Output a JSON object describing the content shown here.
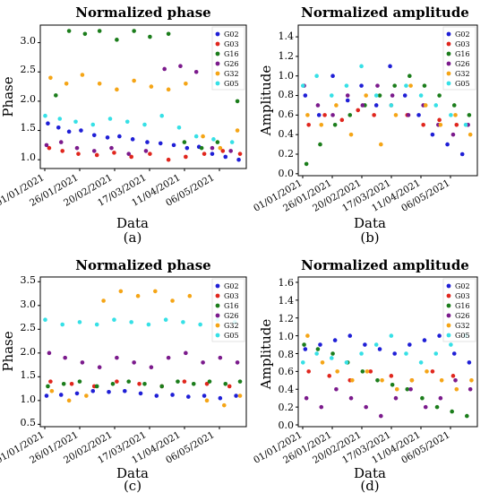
{
  "figure": {
    "colors": {
      "G02": "#1f1fd6",
      "G03": "#e0261d",
      "G16": "#1b7d1b",
      "G26": "#7b1a8c",
      "G32": "#f5a516",
      "G05": "#36e0e6"
    }
  },
  "chart_data": [
    {
      "id": "a",
      "type": "scatter",
      "title": "Normalized phase",
      "xlabel": "Data",
      "ylabel": "Phase",
      "sublabel": "(a)",
      "x_tick_labels": [
        "01/01/2021",
        "26/01/2021",
        "20/02/2021",
        "17/03/2021",
        "11/04/2021",
        "06/05/2021"
      ],
      "x_range": [
        "2021-01-01",
        "2021-05-31"
      ],
      "ylim": [
        0.85,
        3.3
      ],
      "y_ticks": [
        "1.0",
        "1.5",
        "2.0",
        "2.5",
        "3.0"
      ],
      "y_tick_values": [
        1.0,
        1.5,
        2.0,
        2.5,
        3.0
      ],
      "legend": [
        "G02",
        "G03",
        "G16",
        "G26",
        "G32",
        "G05"
      ],
      "legend_position": "top-right",
      "series": [
        {
          "name": "G02",
          "x": [
            "2021-01-04",
            "2021-01-12",
            "2021-01-20",
            "2021-01-29",
            "2021-02-08",
            "2021-02-18",
            "2021-02-27",
            "2021-03-09",
            "2021-03-20",
            "2021-03-30",
            "2021-04-09",
            "2021-04-19",
            "2021-04-28",
            "2021-05-08",
            "2021-05-18",
            "2021-05-28"
          ],
          "y": [
            1.62,
            1.55,
            1.48,
            1.5,
            1.42,
            1.38,
            1.4,
            1.35,
            1.3,
            1.28,
            1.25,
            1.2,
            1.22,
            1.1,
            1.05,
            1.0
          ]
        },
        {
          "name": "G03",
          "x": [
            "2021-01-05",
            "2021-01-15",
            "2021-01-27",
            "2021-02-10",
            "2021-02-23",
            "2021-03-08",
            "2021-03-22",
            "2021-04-05",
            "2021-04-18",
            "2021-05-02",
            "2021-05-16",
            "2021-05-29"
          ],
          "y": [
            1.2,
            1.15,
            1.1,
            1.08,
            1.12,
            1.05,
            1.1,
            1.0,
            1.05,
            1.1,
            1.15,
            1.1
          ]
        },
        {
          "name": "G16",
          "x": [
            "2021-01-10",
            "2021-01-20",
            "2021-02-01",
            "2021-02-12",
            "2021-02-25",
            "2021-03-10",
            "2021-03-22",
            "2021-04-05",
            "2021-04-17",
            "2021-04-30",
            "2021-05-12",
            "2021-05-27"
          ],
          "y": [
            2.1,
            3.2,
            3.15,
            3.2,
            3.05,
            3.2,
            3.1,
            3.15,
            1.3,
            1.2,
            1.3,
            2.0
          ]
        },
        {
          "name": "G26",
          "x": [
            "2021-01-03",
            "2021-01-14",
            "2021-01-26",
            "2021-02-08",
            "2021-02-21",
            "2021-03-06",
            "2021-03-19",
            "2021-04-02",
            "2021-04-14",
            "2021-04-26",
            "2021-05-08",
            "2021-05-22"
          ],
          "y": [
            1.25,
            1.3,
            1.2,
            1.15,
            1.2,
            1.1,
            1.15,
            2.55,
            2.6,
            2.5,
            1.2,
            1.15
          ]
        },
        {
          "name": "G32",
          "x": [
            "2021-01-06",
            "2021-01-18",
            "2021-01-30",
            "2021-02-12",
            "2021-02-25",
            "2021-03-10",
            "2021-03-23",
            "2021-04-05",
            "2021-04-18",
            "2021-05-01",
            "2021-05-14",
            "2021-05-27"
          ],
          "y": [
            2.4,
            2.3,
            2.45,
            2.3,
            2.2,
            2.35,
            2.25,
            2.2,
            2.3,
            1.4,
            1.2,
            1.5
          ]
        },
        {
          "name": "G05",
          "x": [
            "2021-01-02",
            "2021-01-13",
            "2021-01-25",
            "2021-02-07",
            "2021-02-20",
            "2021-03-05",
            "2021-03-18",
            "2021-03-31",
            "2021-04-13",
            "2021-04-26",
            "2021-05-09",
            "2021-05-23"
          ],
          "y": [
            1.75,
            1.7,
            1.65,
            1.6,
            1.7,
            1.65,
            1.6,
            1.75,
            1.55,
            1.4,
            1.35,
            1.3
          ]
        }
      ]
    },
    {
      "id": "b",
      "type": "scatter",
      "title": "Normalized amplitude",
      "xlabel": "Data",
      "ylabel": "Amplitude",
      "sublabel": "(b)",
      "x_tick_labels": [
        "01/01/2021",
        "26/01/2021",
        "20/02/2021",
        "17/03/2021",
        "11/04/2021",
        "06/05/2021"
      ],
      "x_range": [
        "2021-01-01",
        "2021-05-31"
      ],
      "ylim": [
        -0.02,
        1.52
      ],
      "y_ticks": [
        "0.0",
        "0.2",
        "0.4",
        "0.6",
        "0.8",
        "1.0",
        "1.2",
        "1.4"
      ],
      "y_tick_values": [
        0.0,
        0.2,
        0.4,
        0.6,
        0.8,
        1.0,
        1.2,
        1.4
      ],
      "legend": [
        "G02",
        "G03",
        "G16",
        "G26",
        "G32",
        "G05"
      ],
      "legend_position": "top-right",
      "series": [
        {
          "name": "G02",
          "x": [
            "2021-01-04",
            "2021-01-16",
            "2021-01-28",
            "2021-02-10",
            "2021-02-22",
            "2021-03-07",
            "2021-03-19",
            "2021-04-01",
            "2021-04-13",
            "2021-04-25",
            "2021-05-08",
            "2021-05-21"
          ],
          "y": [
            0.8,
            0.6,
            1.0,
            0.75,
            0.9,
            0.7,
            1.1,
            0.8,
            0.6,
            0.4,
            0.3,
            0.2
          ]
        },
        {
          "name": "G03",
          "x": [
            "2021-01-07",
            "2021-01-21",
            "2021-02-05",
            "2021-02-19",
            "2021-03-05",
            "2021-03-20",
            "2021-04-03",
            "2021-04-17",
            "2021-05-01",
            "2021-05-16"
          ],
          "y": [
            0.5,
            0.6,
            0.55,
            0.65,
            0.6,
            0.7,
            0.6,
            0.5,
            0.55,
            0.5
          ]
        },
        {
          "name": "G16",
          "x": [
            "2021-01-05",
            "2021-01-17",
            "2021-01-30",
            "2021-02-12",
            "2021-02-25",
            "2021-03-10",
            "2021-03-23",
            "2021-04-05",
            "2021-04-18",
            "2021-05-01",
            "2021-05-14",
            "2021-05-27"
          ],
          "y": [
            0.1,
            0.3,
            0.5,
            0.6,
            0.7,
            0.8,
            0.9,
            1.0,
            0.9,
            0.8,
            0.7,
            0.6
          ]
        },
        {
          "name": "G26",
          "x": [
            "2021-01-03",
            "2021-01-15",
            "2021-01-28",
            "2021-02-10",
            "2021-02-23",
            "2021-03-08",
            "2021-03-21",
            "2021-04-04",
            "2021-04-17",
            "2021-04-30",
            "2021-05-13",
            "2021-05-26"
          ],
          "y": [
            0.9,
            0.7,
            0.6,
            0.8,
            0.7,
            0.9,
            0.8,
            0.6,
            0.7,
            0.5,
            0.4,
            0.5
          ]
        },
        {
          "name": "G32",
          "x": [
            "2021-01-06",
            "2021-01-18",
            "2021-01-31",
            "2021-02-13",
            "2021-02-26",
            "2021-03-11",
            "2021-03-24",
            "2021-04-06",
            "2021-04-19",
            "2021-05-02",
            "2021-05-15",
            "2021-05-28"
          ],
          "y": [
            0.6,
            0.5,
            0.7,
            0.4,
            0.8,
            0.3,
            0.6,
            0.9,
            0.7,
            0.5,
            0.6,
            0.4
          ]
        },
        {
          "name": "G05",
          "x": [
            "2021-01-02",
            "2021-01-14",
            "2021-01-27",
            "2021-02-09",
            "2021-02-22",
            "2021-03-07",
            "2021-03-20",
            "2021-04-02",
            "2021-04-15",
            "2021-04-28",
            "2021-05-11",
            "2021-05-24"
          ],
          "y": [
            0.9,
            1.0,
            0.8,
            0.9,
            1.1,
            0.8,
            0.7,
            0.9,
            0.8,
            0.7,
            0.6,
            0.5
          ]
        }
      ]
    },
    {
      "id": "c",
      "type": "scatter",
      "title": "Normalized phase",
      "xlabel": "Data",
      "ylabel": "Phase",
      "sublabel": "(c)",
      "x_tick_labels": [
        "01/01/2021",
        "26/01/2021",
        "20/02/2021",
        "17/03/2021",
        "11/04/2021",
        "06/05/2021"
      ],
      "x_range": [
        "2021-01-01",
        "2021-05-31"
      ],
      "ylim": [
        0.45,
        3.6
      ],
      "y_ticks": [
        "0.5",
        "1.0",
        "1.5",
        "2.0",
        "2.5",
        "3.0",
        "3.5"
      ],
      "y_tick_values": [
        0.5,
        1.0,
        1.5,
        2.0,
        2.5,
        3.0,
        3.5
      ],
      "legend": [
        "G02",
        "G03",
        "G16",
        "G26",
        "G32",
        "G05"
      ],
      "legend_position": "top-right",
      "series": [
        {
          "name": "G02",
          "x": [
            "2021-01-03",
            "2021-01-14",
            "2021-01-26",
            "2021-02-07",
            "2021-02-19",
            "2021-03-03",
            "2021-03-15",
            "2021-03-27",
            "2021-04-08",
            "2021-04-20",
            "2021-05-02",
            "2021-05-14",
            "2021-05-26"
          ],
          "y": [
            1.1,
            1.12,
            1.15,
            1.2,
            1.18,
            1.2,
            1.15,
            1.1,
            1.12,
            1.08,
            1.1,
            1.05,
            1.1
          ]
        },
        {
          "name": "G03",
          "x": [
            "2021-01-06",
            "2021-01-22",
            "2021-02-08",
            "2021-02-25",
            "2021-03-14",
            "2021-03-31",
            "2021-04-17",
            "2021-05-04",
            "2021-05-21"
          ],
          "y": [
            1.4,
            1.35,
            1.3,
            1.4,
            1.35,
            1.3,
            1.4,
            1.35,
            1.3
          ]
        },
        {
          "name": "G16",
          "x": [
            "2021-01-04",
            "2021-01-16",
            "2021-01-28",
            "2021-02-10",
            "2021-02-22",
            "2021-03-06",
            "2021-03-18",
            "2021-03-31",
            "2021-04-12",
            "2021-04-24",
            "2021-05-06",
            "2021-05-18",
            "2021-05-29"
          ],
          "y": [
            1.3,
            1.35,
            1.4,
            1.3,
            1.35,
            1.4,
            1.35,
            1.3,
            1.4,
            1.35,
            1.4,
            1.35,
            1.4
          ]
        },
        {
          "name": "G26",
          "x": [
            "2021-01-05",
            "2021-01-17",
            "2021-01-30",
            "2021-02-12",
            "2021-02-25",
            "2021-03-10",
            "2021-03-23",
            "2021-04-05",
            "2021-04-18",
            "2021-05-01",
            "2021-05-14",
            "2021-05-27"
          ],
          "y": [
            2.0,
            1.9,
            1.8,
            1.7,
            1.9,
            1.8,
            1.7,
            1.9,
            2.0,
            1.8,
            1.9,
            1.8
          ]
        },
        {
          "name": "G32",
          "x": [
            "2021-01-07",
            "2021-01-20",
            "2021-02-02",
            "2021-02-15",
            "2021-02-28",
            "2021-03-13",
            "2021-03-26",
            "2021-04-08",
            "2021-04-21",
            "2021-05-04",
            "2021-05-17",
            "2021-05-29"
          ],
          "y": [
            1.2,
            1.0,
            1.1,
            3.1,
            3.3,
            3.2,
            3.3,
            3.1,
            3.2,
            1.0,
            0.9,
            1.1
          ]
        },
        {
          "name": "G05",
          "x": [
            "2021-01-02",
            "2021-01-15",
            "2021-01-28",
            "2021-02-10",
            "2021-02-23",
            "2021-03-08",
            "2021-03-21",
            "2021-04-03",
            "2021-04-16",
            "2021-04-29",
            "2021-05-12",
            "2021-05-25"
          ],
          "y": [
            2.7,
            2.6,
            2.65,
            2.6,
            2.7,
            2.65,
            2.6,
            2.7,
            2.65,
            2.6,
            2.7,
            2.65
          ]
        }
      ]
    },
    {
      "id": "d",
      "type": "scatter",
      "title": "Normalized amplitude",
      "xlabel": "Data",
      "ylabel": "Amplitude",
      "sublabel": "(d)",
      "x_tick_labels": [
        "01/01/2021",
        "26/01/2021",
        "20/02/2021",
        "17/03/2021",
        "11/04/2021",
        "06/05/2021"
      ],
      "x_range": [
        "2021-01-01",
        "2021-05-31"
      ],
      "ylim": [
        -0.02,
        1.66
      ],
      "y_ticks": [
        "0.0",
        "0.2",
        "0.4",
        "0.6",
        "0.8",
        "1.0",
        "1.2",
        "1.4",
        "1.6"
      ],
      "y_tick_values": [
        0.0,
        0.2,
        0.4,
        0.6,
        0.8,
        1.0,
        1.2,
        1.4,
        1.6
      ],
      "legend": [
        "G02",
        "G03",
        "G16",
        "G26",
        "G32",
        "G05"
      ],
      "legend_position": "top-right",
      "series": [
        {
          "name": "G02",
          "x": [
            "2021-01-04",
            "2021-01-17",
            "2021-01-30",
            "2021-02-12",
            "2021-02-25",
            "2021-03-10",
            "2021-03-23",
            "2021-04-05",
            "2021-04-18",
            "2021-05-01",
            "2021-05-14",
            "2021-05-27"
          ],
          "y": [
            0.85,
            0.9,
            0.95,
            1.0,
            0.9,
            0.85,
            0.8,
            0.9,
            0.95,
            1.0,
            0.8,
            0.7
          ]
        },
        {
          "name": "G03",
          "x": [
            "2021-01-07",
            "2021-01-25",
            "2021-02-12",
            "2021-03-02",
            "2021-03-20",
            "2021-04-07",
            "2021-04-25",
            "2021-05-13"
          ],
          "y": [
            0.6,
            0.55,
            0.5,
            0.6,
            0.55,
            0.5,
            0.6,
            0.55
          ]
        },
        {
          "name": "G16",
          "x": [
            "2021-01-03",
            "2021-01-15",
            "2021-01-28",
            "2021-02-10",
            "2021-02-23",
            "2021-03-08",
            "2021-03-21",
            "2021-04-03",
            "2021-04-16",
            "2021-04-29",
            "2021-05-12",
            "2021-05-25"
          ],
          "y": [
            0.9,
            0.85,
            0.8,
            0.7,
            0.6,
            0.5,
            0.45,
            0.4,
            0.3,
            0.2,
            0.15,
            0.1
          ]
        },
        {
          "name": "G26",
          "x": [
            "2021-01-05",
            "2021-01-18",
            "2021-01-31",
            "2021-02-13",
            "2021-02-26",
            "2021-03-11",
            "2021-03-24",
            "2021-04-06",
            "2021-04-19",
            "2021-05-02",
            "2021-05-15",
            "2021-05-28"
          ],
          "y": [
            0.3,
            0.2,
            0.4,
            0.3,
            0.2,
            0.1,
            0.3,
            0.4,
            0.2,
            0.3,
            0.5,
            0.4
          ]
        },
        {
          "name": "G32",
          "x": [
            "2021-01-06",
            "2021-01-19",
            "2021-02-01",
            "2021-02-14",
            "2021-02-27",
            "2021-03-12",
            "2021-03-25",
            "2021-04-07",
            "2021-04-20",
            "2021-05-03",
            "2021-05-16",
            "2021-05-29"
          ],
          "y": [
            1.0,
            0.7,
            0.6,
            0.5,
            0.6,
            0.5,
            0.4,
            0.5,
            0.6,
            0.5,
            0.4,
            0.5
          ]
        },
        {
          "name": "G05",
          "x": [
            "2021-01-02",
            "2021-01-14",
            "2021-01-27",
            "2021-02-09",
            "2021-02-22",
            "2021-03-07",
            "2021-03-20",
            "2021-04-02",
            "2021-04-15",
            "2021-04-28",
            "2021-05-11",
            "2021-05-24"
          ],
          "y": [
            0.7,
            0.8,
            0.75,
            0.7,
            0.8,
            0.9,
            1.0,
            0.8,
            0.7,
            0.8,
            0.9,
            1.0
          ]
        }
      ]
    }
  ]
}
